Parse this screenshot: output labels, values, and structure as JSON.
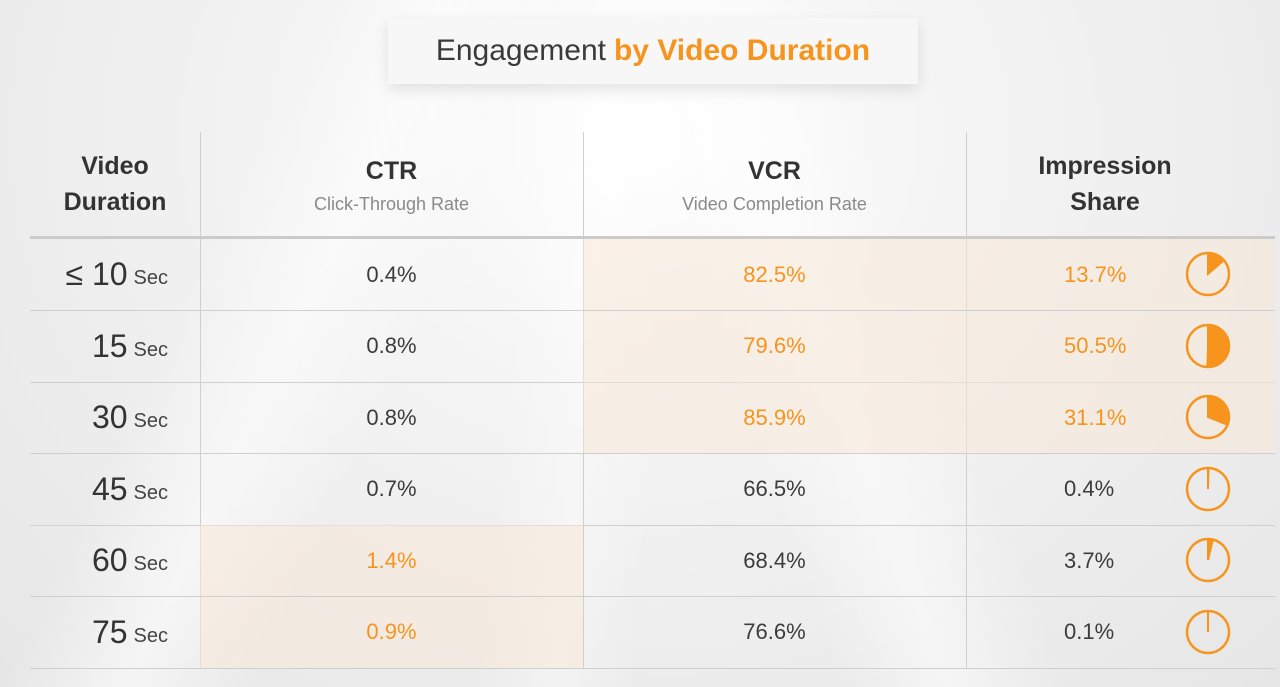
{
  "title": {
    "plain": "Engagement",
    "accent": "by Video Duration"
  },
  "colors": {
    "accent": "#f7941d",
    "text": "#333333",
    "sub": "#8a8a8a",
    "highlight": "#f8e8d8"
  },
  "headers": {
    "duration": {
      "main": "Video Duration"
    },
    "ctr": {
      "main": "CTR",
      "sub": "Click-Through Rate"
    },
    "vcr": {
      "main": "VCR",
      "sub": "Video Completion Rate"
    },
    "share": {
      "main": "Impression Share"
    }
  },
  "chart_data": {
    "type": "table",
    "title": "Engagement by Video Duration",
    "columns": [
      "Video Duration",
      "CTR",
      "VCR",
      "Impression Share"
    ],
    "rows": [
      {
        "prefix": "≤",
        "duration": "10",
        "unit": "Sec",
        "ctr": "0.4%",
        "vcr": "82.5%",
        "share": "13.7%",
        "share_value": 13.7,
        "ctr_hl": false,
        "vcr_hl": true,
        "share_hl": true
      },
      {
        "prefix": "",
        "duration": "15",
        "unit": "Sec",
        "ctr": "0.8%",
        "vcr": "79.6%",
        "share": "50.5%",
        "share_value": 50.5,
        "ctr_hl": false,
        "vcr_hl": true,
        "share_hl": true
      },
      {
        "prefix": "",
        "duration": "30",
        "unit": "Sec",
        "ctr": "0.8%",
        "vcr": "85.9%",
        "share": "31.1%",
        "share_value": 31.1,
        "ctr_hl": false,
        "vcr_hl": true,
        "share_hl": true
      },
      {
        "prefix": "",
        "duration": "45",
        "unit": "Sec",
        "ctr": "0.7%",
        "vcr": "66.5%",
        "share": "0.4%",
        "share_value": 0.4,
        "ctr_hl": false,
        "vcr_hl": false,
        "share_hl": false
      },
      {
        "prefix": "",
        "duration": "60",
        "unit": "Sec",
        "ctr": "1.4%",
        "vcr": "68.4%",
        "share": "3.7%",
        "share_value": 3.7,
        "ctr_hl": true,
        "vcr_hl": false,
        "share_hl": false
      },
      {
        "prefix": "",
        "duration": "75",
        "unit": "Sec",
        "ctr": "0.9%",
        "vcr": "76.6%",
        "share": "0.1%",
        "share_value": 0.1,
        "ctr_hl": true,
        "vcr_hl": false,
        "share_hl": false
      }
    ]
  }
}
